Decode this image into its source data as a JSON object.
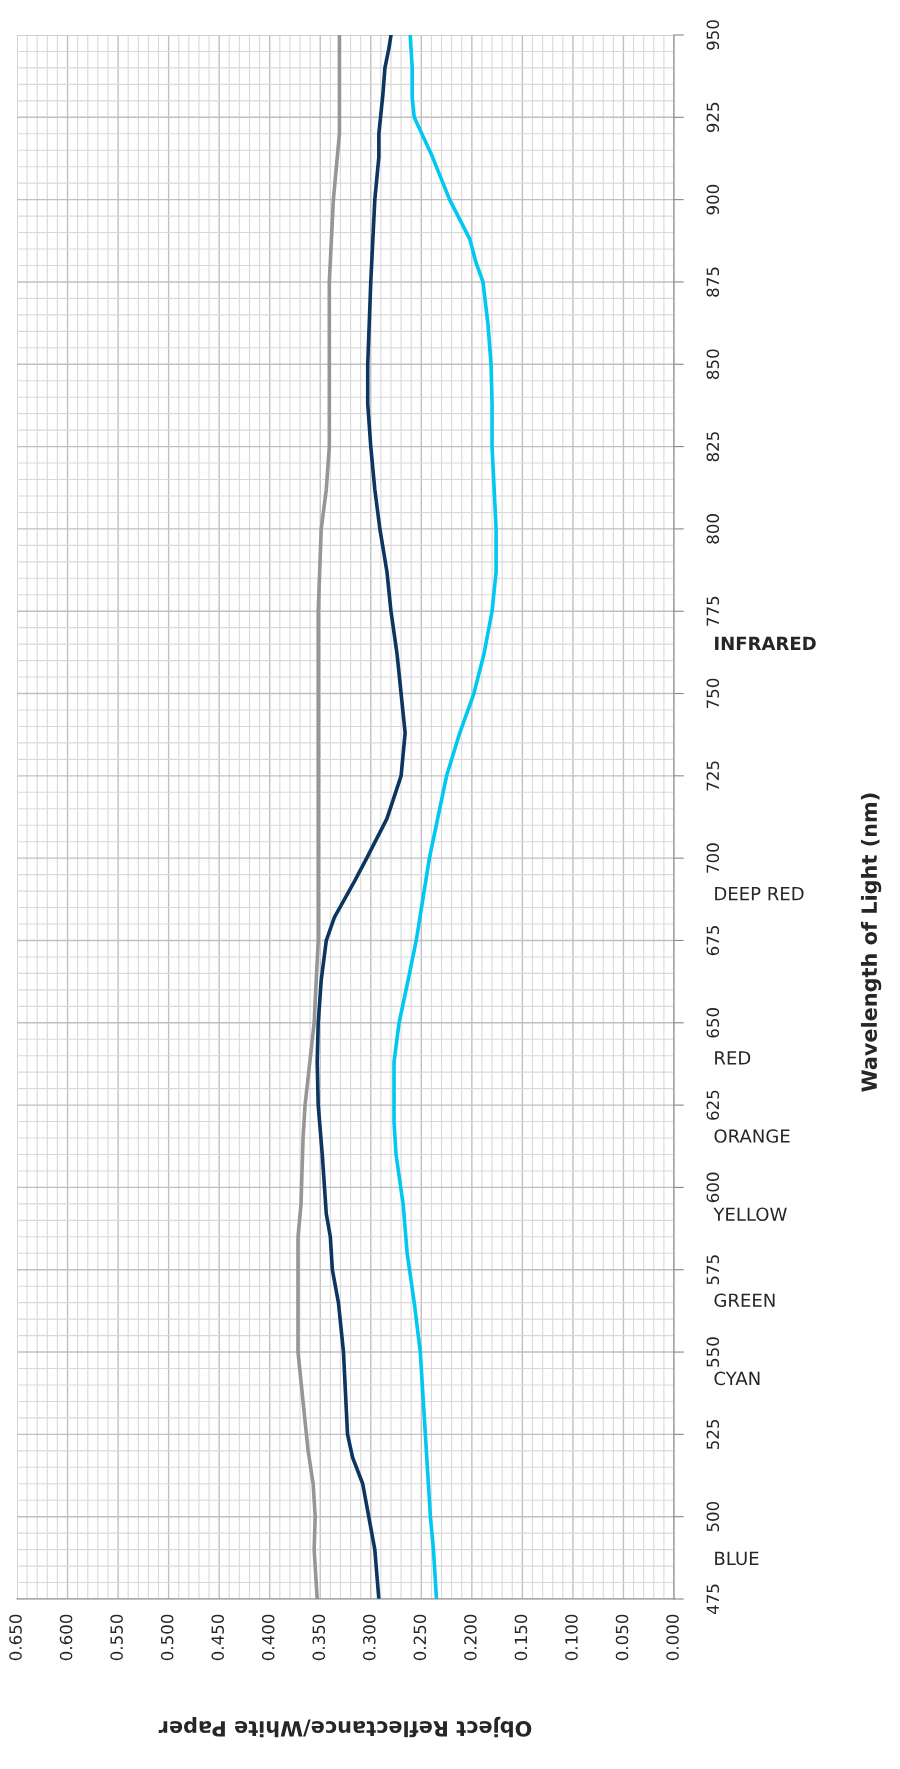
{
  "chart_data": {
    "type": "line",
    "xlabel": "Object Reflectance/White Paper",
    "xlim": [
      0.65,
      0
    ],
    "ylim": [
      475,
      950
    ],
    "xticks": [
      {
        "value": 0.65,
        "label": "0.650"
      },
      {
        "value": 0.6,
        "label": "0.600"
      },
      {
        "value": 0.55,
        "label": "0.550"
      },
      {
        "value": 0.5,
        "label": "0.500"
      },
      {
        "value": 0.45,
        "label": "0.450"
      },
      {
        "value": 0.4,
        "label": "0.400"
      },
      {
        "value": 0.35,
        "label": "0.350"
      },
      {
        "value": 0.3,
        "label": "0.300"
      },
      {
        "value": 0.25,
        "label": "0.250"
      },
      {
        "value": 0.2,
        "label": "0.200"
      },
      {
        "value": 0.15,
        "label": "0.150"
      },
      {
        "value": 0.1,
        "label": "0.100"
      },
      {
        "value": 0.05,
        "label": "0.050"
      },
      {
        "value": 0,
        "label": "0.000"
      }
    ],
    "yticks": [
      475,
      500,
      525,
      550,
      575,
      600,
      625,
      650,
      675,
      700,
      725,
      750,
      775,
      800,
      825,
      850,
      875,
      900,
      925,
      950
    ],
    "grid": true,
    "series": [
      {
        "color": "#969696",
        "values": [
          475,
          490,
          500,
          510,
          520,
          535,
          550,
          565,
          585,
          595,
          615,
          625,
          650,
          675,
          700,
          775,
          800,
          812,
          825,
          850,
          875,
          900,
          920,
          950
        ],
        "x": [
          0.353,
          0.356,
          0.355,
          0.357,
          0.362,
          0.367,
          0.372,
          0.372,
          0.372,
          0.369,
          0.367,
          0.365,
          0.356,
          0.352,
          0.352,
          0.352,
          0.349,
          0.344,
          0.341,
          0.341,
          0.341,
          0.337,
          0.331,
          0.331
        ]
      },
      {
        "color": "#0c3560",
        "values": [
          475,
          490,
          500,
          510,
          518,
          525,
          550,
          565,
          575,
          585,
          592,
          610,
          625,
          638,
          650,
          663,
          675,
          682,
          693,
          700,
          712,
          725,
          738,
          762,
          775,
          787,
          800,
          812,
          825,
          838,
          850,
          875,
          900,
          913,
          920,
          932,
          940,
          946,
          950
        ],
        "x": [
          0.292,
          0.296,
          0.302,
          0.308,
          0.318,
          0.323,
          0.327,
          0.332,
          0.338,
          0.34,
          0.344,
          0.348,
          0.352,
          0.353,
          0.352,
          0.349,
          0.344,
          0.336,
          0.316,
          0.304,
          0.284,
          0.27,
          0.266,
          0.274,
          0.28,
          0.284,
          0.291,
          0.296,
          0.3,
          0.303,
          0.303,
          0.3,
          0.296,
          0.292,
          0.292,
          0.288,
          0.286,
          0.282,
          0.28
        ]
      },
      {
        "color": "#00c8f0",
        "values": [
          475,
          490,
          500,
          510,
          520,
          550,
          565,
          580,
          595,
          610,
          620,
          625,
          638,
          650,
          663,
          675,
          700,
          725,
          738,
          750,
          762,
          775,
          787,
          800,
          825,
          838,
          850,
          862,
          875,
          881,
          888,
          900,
          913,
          925,
          931,
          940,
          945,
          950
        ],
        "x": [
          0.235,
          0.238,
          0.241,
          0.243,
          0.245,
          0.251,
          0.257,
          0.264,
          0.268,
          0.275,
          0.277,
          0.277,
          0.277,
          0.272,
          0.263,
          0.255,
          0.242,
          0.225,
          0.212,
          0.198,
          0.188,
          0.18,
          0.176,
          0.176,
          0.18,
          0.18,
          0.181,
          0.184,
          0.189,
          0.196,
          0.202,
          0.222,
          0.239,
          0.257,
          0.259,
          0.259,
          0.26,
          0.261
        ]
      }
    ],
    "annotations": [
      "BLUE",
      "CYAN",
      "GREEN",
      "YELLOW",
      "ORANGE",
      "RED",
      "DEEP RED",
      "INFRARED",
      "Wavelength of Light (nm)"
    ]
  }
}
